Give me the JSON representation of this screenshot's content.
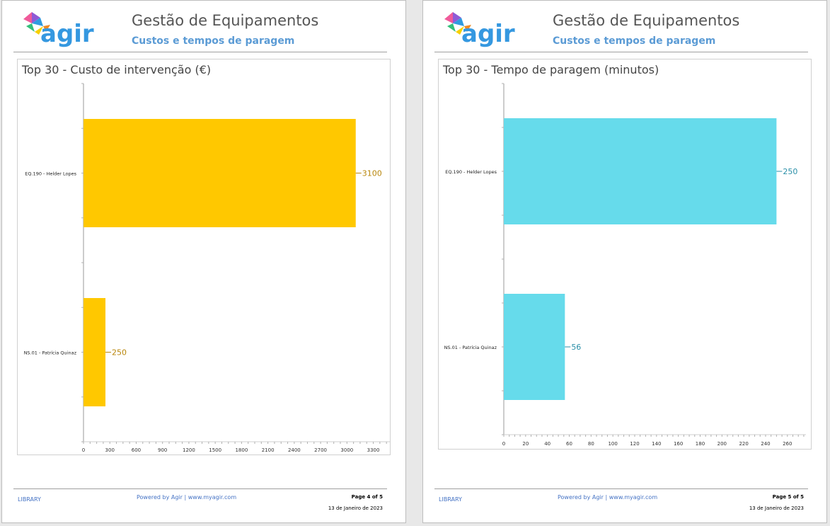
{
  "pages": [
    {
      "header": {
        "logo_text": "agir",
        "title": "Gestão de Equipamentos",
        "subtitle": "Custos e tempos de paragem"
      },
      "chart_title": "Top 30 - Custo de intervenção  (€)",
      "footer": {
        "left": "LIBRARY",
        "powered": "Powered by  Agir  |  www.myagir.com",
        "page": "Page 4 of 5",
        "date": "13 de Janeiro de 2023"
      }
    },
    {
      "header": {
        "logo_text": "agir",
        "title": "Gestão de Equipamentos",
        "subtitle": "Custos e tempos de paragem"
      },
      "chart_title": "Top 30 - Tempo de paragem (minutos)",
      "footer": {
        "left": "LIBRARY",
        "powered": "Powered by  Agir  |  www.myagir.com",
        "page": "Page 5 of 5",
        "date": "13 de Janeiro de 2023"
      }
    }
  ],
  "chart_data": [
    {
      "type": "bar",
      "orientation": "horizontal",
      "title": "Top 30 - Custo de intervenção  (€)",
      "categories": [
        "EQ.190 - Helder Lopes",
        "NS.01 - Patrícia Quinaz"
      ],
      "values": [
        3100,
        250
      ],
      "data_labels": [
        "3100",
        "250"
      ],
      "xticks": [
        0,
        300,
        600,
        900,
        1200,
        1500,
        1800,
        2100,
        2400,
        2700,
        3000,
        3300
      ],
      "xlim": [
        0,
        3500
      ],
      "color": "#ffc800",
      "label_color": "#b8860b"
    },
    {
      "type": "bar",
      "orientation": "horizontal",
      "title": "Top 30 - Tempo de paragem (minutos)",
      "categories": [
        "EQ.190 - Helder Lopes",
        "NS.01 - Patrícia Quinaz"
      ],
      "values": [
        250,
        56
      ],
      "data_labels": [
        "250",
        "56"
      ],
      "xticks": [
        0,
        20,
        40,
        60,
        80,
        100,
        120,
        140,
        160,
        180,
        200,
        220,
        240,
        260
      ],
      "xlim": [
        0,
        277
      ],
      "color": "#66dbeb",
      "label_color": "#2a8fa8"
    }
  ]
}
